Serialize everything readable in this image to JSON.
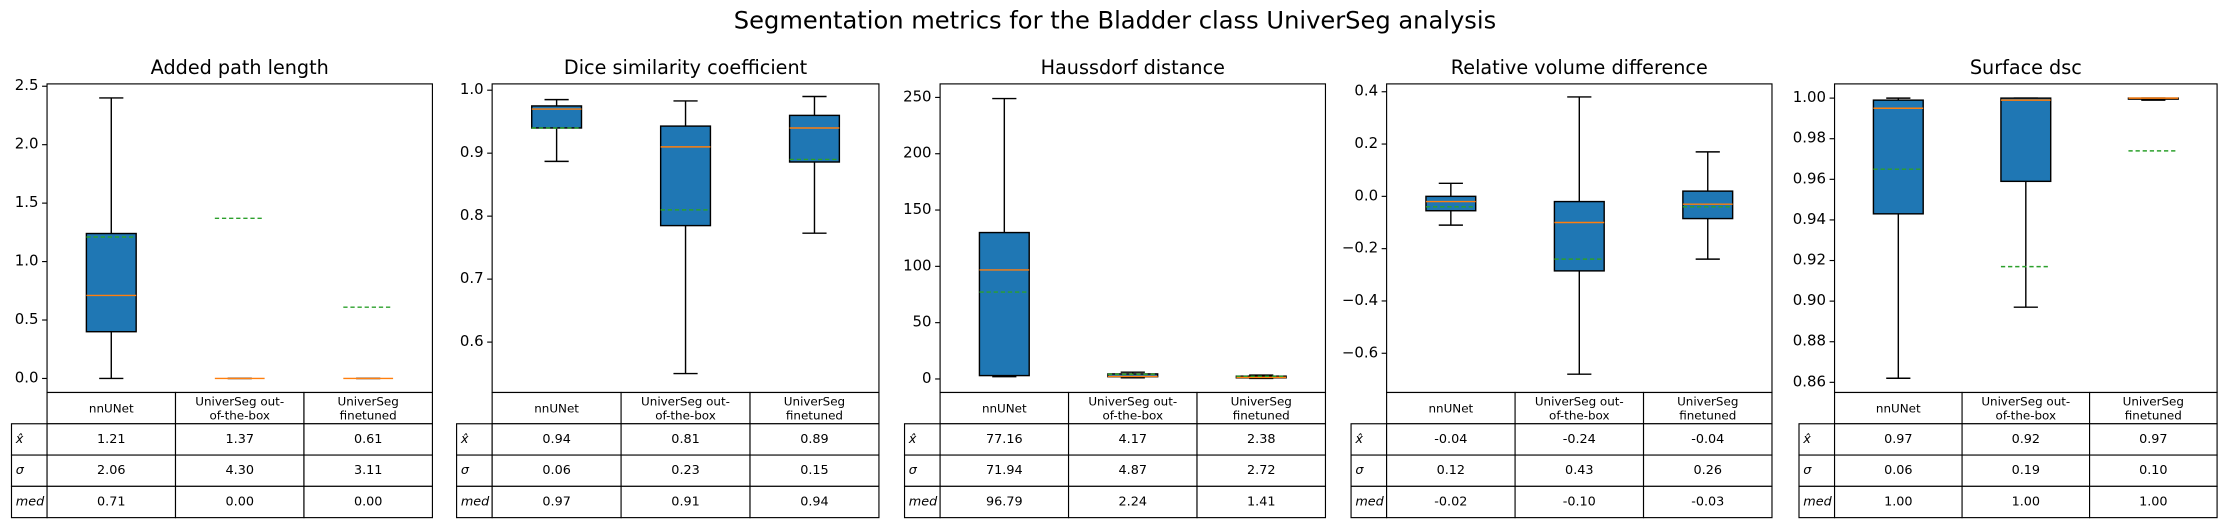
{
  "title": "Segmentation metrics for the Bladder class UniverSeg analysis",
  "chart_data": [
    {
      "type": "box",
      "title": "Added path length",
      "categories": [
        "nnUNet",
        "UniverSeg out-\nof-the-box",
        "UniverSeg\nfinetuned"
      ],
      "color": "#1f77b4",
      "median_color": "#ff7f0e",
      "mean_color": "#2ca02c",
      "boxes": [
        {
          "whislo": 0,
          "q1": 0.4,
          "median": 0.71,
          "q3": 1.24,
          "whishi": 2.4,
          "mean": 1.21
        },
        {
          "whislo": 0,
          "q1": 0,
          "median": 0,
          "q3": 0,
          "whishi": 0,
          "mean": 1.37
        },
        {
          "whislo": 0,
          "q1": 0,
          "median": 0,
          "q3": 0,
          "whishi": 0,
          "mean": 0.61
        }
      ],
      "ylim": [
        -0.12,
        2.52
      ],
      "yticks": [
        {
          "value": 0,
          "label": "0.0"
        },
        0.5,
        {
          "value": 1,
          "label": "1.0"
        },
        1.5,
        {
          "value": 2,
          "label": "2.0"
        },
        2.5
      ],
      "table": {
        "row_labels": [
          "x̂",
          "σ",
          "med"
        ],
        "rows": [
          [
            "1.21",
            "1.37",
            "0.61"
          ],
          [
            "2.06",
            "4.30",
            "3.11"
          ],
          [
            "0.71",
            "0.00",
            "0.00"
          ]
        ]
      }
    },
    {
      "type": "box",
      "title": "Dice similarity coefficient",
      "categories": [
        "nnUNet",
        "UniverSeg out-\nof-the-box",
        "UniverSeg\nfinetuned"
      ],
      "color": "#1f77b4",
      "median_color": "#ff7f0e",
      "mean_color": "#2ca02c",
      "boxes": [
        {
          "whislo": 0.887,
          "q1": 0.94,
          "median": 0.97,
          "q3": 0.975,
          "whishi": 0.985,
          "mean": 0.94
        },
        {
          "whislo": 0.55,
          "q1": 0.785,
          "median": 0.91,
          "q3": 0.943,
          "whishi": 0.983,
          "mean": 0.81
        },
        {
          "whislo": 0.773,
          "q1": 0.886,
          "median": 0.94,
          "q3": 0.96,
          "whishi": 0.99,
          "mean": 0.89
        }
      ],
      "ylim": [
        0.52,
        1.01
      ],
      "yticks": [
        0.6,
        0.7,
        0.8,
        0.9,
        {
          "value": 1,
          "label": "1.0"
        }
      ],
      "table": {
        "row_labels": [
          "x̂",
          "σ",
          "med"
        ],
        "rows": [
          [
            "0.94",
            "0.81",
            "0.89"
          ],
          [
            "0.06",
            "0.23",
            "0.15"
          ],
          [
            "0.97",
            "0.91",
            "0.94"
          ]
        ]
      }
    },
    {
      "type": "box",
      "title": "Haussdorf distance",
      "categories": [
        "nnUNet",
        "UniverSeg out-\nof-the-box",
        "UniverSeg\nfinetuned"
      ],
      "color": "#1f77b4",
      "median_color": "#ff7f0e",
      "mean_color": "#2ca02c",
      "boxes": [
        {
          "whislo": 2,
          "q1": 3,
          "median": 96.79,
          "q3": 130,
          "whishi": 249,
          "mean": 77.16
        },
        {
          "whislo": 1,
          "q1": 2,
          "median": 2.24,
          "q3": 4.5,
          "whishi": 6,
          "mean": 4.17
        },
        {
          "whislo": 0.5,
          "q1": 1,
          "median": 1.41,
          "q3": 2.5,
          "whishi": 3.5,
          "mean": 2.38
        }
      ],
      "ylim": [
        -12,
        262
      ],
      "yticks": [
        0,
        50,
        100,
        150,
        200,
        250
      ],
      "table": {
        "row_labels": [
          "x̂",
          "σ",
          "med"
        ],
        "rows": [
          [
            "77.16",
            "4.17",
            "2.38"
          ],
          [
            "71.94",
            "4.87",
            "2.72"
          ],
          [
            "96.79",
            "2.24",
            "1.41"
          ]
        ]
      }
    },
    {
      "type": "box",
      "title": "Relative volume difference",
      "categories": [
        "nnUNet",
        "UniverSeg out-\nof-the-box",
        "UniverSeg\nfinetuned"
      ],
      "color": "#1f77b4",
      "median_color": "#ff7f0e",
      "mean_color": "#2ca02c",
      "boxes": [
        {
          "whislo": -0.11,
          "q1": -0.055,
          "median": -0.02,
          "q3": 0.0,
          "whishi": 0.05,
          "mean": -0.04
        },
        {
          "whislo": -0.68,
          "q1": -0.285,
          "median": -0.1,
          "q3": -0.02,
          "whishi": 0.38,
          "mean": -0.24
        },
        {
          "whislo": -0.24,
          "q1": -0.085,
          "median": -0.03,
          "q3": 0.02,
          "whishi": 0.17,
          "mean": -0.04
        }
      ],
      "ylim": [
        -0.75,
        0.43
      ],
      "yticks": [
        {
          "value": -0.6,
          "label": "−0.6"
        },
        {
          "value": -0.4,
          "label": "−0.4"
        },
        {
          "value": -0.2,
          "label": "−0.2"
        },
        {
          "value": 0,
          "label": "0.0"
        },
        0.2,
        0.4
      ],
      "table": {
        "row_labels": [
          "x̂",
          "σ",
          "med"
        ],
        "rows": [
          [
            "-0.04",
            "-0.24",
            "-0.04"
          ],
          [
            "0.12",
            "0.43",
            "0.26"
          ],
          [
            "-0.02",
            "-0.10",
            "-0.03"
          ]
        ]
      }
    },
    {
      "type": "box",
      "title": "Surface dsc",
      "categories": [
        "nnUNet",
        "UniverSeg out-\nof-the-box",
        "UniverSeg\nfinetuned"
      ],
      "color": "#1f77b4",
      "median_color": "#ff7f0e",
      "mean_color": "#2ca02c",
      "boxes": [
        {
          "whislo": 0.862,
          "q1": 0.943,
          "median": 0.995,
          "q3": 0.999,
          "whishi": 1.0,
          "mean": 0.965
        },
        {
          "whislo": 0.897,
          "q1": 0.959,
          "median": 0.999,
          "q3": 1.0,
          "whishi": 1.0,
          "mean": 0.917
        },
        {
          "whislo": 0.999,
          "q1": 0.9995,
          "median": 1.0,
          "q3": 1.0,
          "whishi": 1.0,
          "mean": 0.974
        }
      ],
      "ylim": [
        0.855,
        1.007
      ],
      "yticks": [
        0.86,
        0.88,
        {
          "value": 0.9,
          "label": "0.90"
        },
        0.92,
        0.94,
        0.96,
        0.98,
        {
          "value": 1,
          "label": "1.00"
        }
      ],
      "table": {
        "row_labels": [
          "x̂",
          "σ",
          "med"
        ],
        "rows": [
          [
            "0.97",
            "0.92",
            "0.97"
          ],
          [
            "0.06",
            "0.19",
            "0.10"
          ],
          [
            "1.00",
            "1.00",
            "1.00"
          ]
        ]
      }
    }
  ]
}
